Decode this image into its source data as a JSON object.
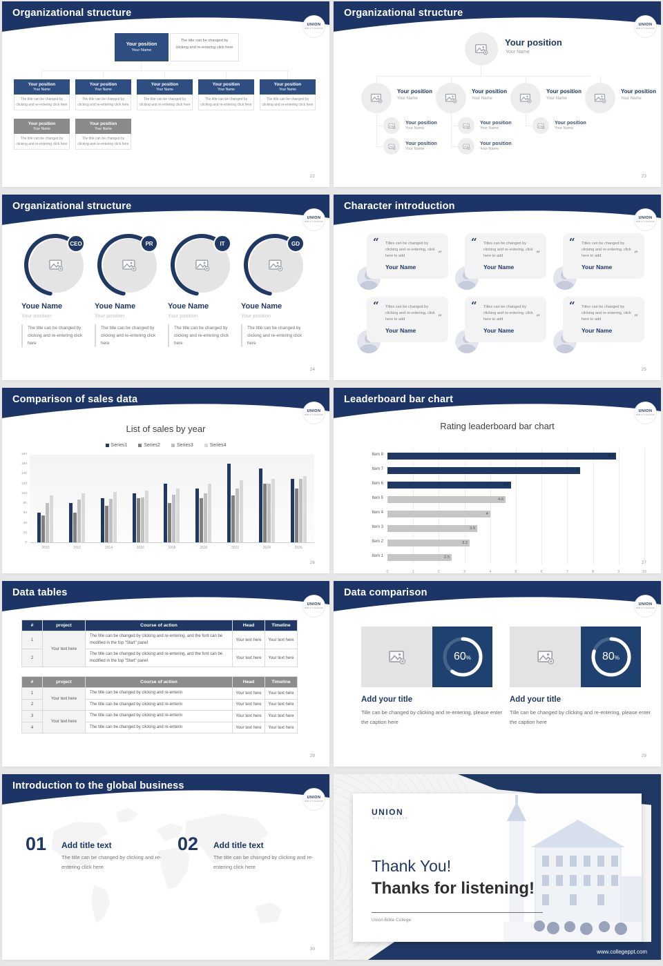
{
  "colors": {
    "navy_header": "#1c3566",
    "box_blue": "#2e4d80",
    "box_gray": "#8a8a8a",
    "accent_navy": "#1f3864",
    "panel_blue": "#1e4170",
    "series": [
      "#1f3864",
      "#808080",
      "#bfbfbf",
      "#d9d9d9"
    ],
    "leader_gray": "#c6c6c6"
  },
  "logo": {
    "text": "UNION",
    "sub": "BIBLE COLLEGE"
  },
  "slides": {
    "org1": {
      "title": "Organizational structure",
      "page": "22",
      "position": "Your position",
      "name": "Your Name",
      "note": "The title can be changed by clicking and re-entering click here",
      "blue_boxes": 5,
      "gray_boxes": 2
    },
    "org2": {
      "title": "Organizational structure",
      "page": "23",
      "position": "Your position",
      "name": "Your Name",
      "children": 4,
      "subs": [
        2,
        2,
        1,
        0
      ]
    },
    "org3": {
      "title": "Organizational structure",
      "page": "24",
      "badges": [
        "CEO",
        "PR",
        "IT",
        "GD"
      ],
      "name": "Youe Name",
      "position": "Your position",
      "desc": "The title can be changed by clicking and re-entering click here"
    },
    "chars": {
      "title": "Character introduction",
      "page": "25",
      "cards": 6,
      "quote": "Titles can be changed by clicking and re-entering, click here to add",
      "name": "Your Name"
    },
    "sales": {
      "title": "Comparison of sales data",
      "page": "26"
    },
    "leader": {
      "title": "Leaderboard bar chart",
      "page": "27"
    },
    "tables": {
      "title": "Data tables",
      "page": "28",
      "headers": [
        "#",
        "project",
        "Course of action",
        "Head",
        "Timeline"
      ],
      "project_cell": "Your text here",
      "text_cell": "Your text here",
      "table1": {
        "rows": [
          "1",
          "2"
        ],
        "course": "The title can be changed by clicking and re-entering, and the font can be modified in the top \"Start\" panel"
      },
      "table2": {
        "rows": [
          "1",
          "2",
          "3",
          "4"
        ],
        "course": "The title can be changed by clicking and re-enterin"
      }
    },
    "compare": {
      "title": "Data comparison",
      "page": "29",
      "items": [
        {
          "value": "60",
          "unit": "%",
          "pct": 60
        },
        {
          "value": "80",
          "unit": "%",
          "pct": 80
        }
      ],
      "card_title": "Add your title",
      "caption": "Tille can be changed by clicking and re-entering, please enter the caption here"
    },
    "global": {
      "title": "Introduction to the global business",
      "page": "30",
      "items": [
        {
          "num": "01",
          "title": "Add title text",
          "body": "The title can be changed by clicking and re-entering click here"
        },
        {
          "num": "02",
          "title": "Add title text",
          "body": "The title can be changed by clicking and re-entering click here"
        }
      ]
    },
    "thanks": {
      "hi": "Thank You!",
      "big": "Thanks for listening!",
      "sub": "Union Bible College",
      "url": "www.collegeppt.com"
    }
  },
  "chart_data": [
    {
      "type": "bar",
      "title": "List of sales by year",
      "categories": [
        "2010",
        "2012",
        "2014",
        "2016",
        "2018",
        "2020",
        "2022",
        "2024",
        "2026"
      ],
      "series": [
        {
          "name": "Series1",
          "values": [
            60,
            80,
            90,
            100,
            120,
            110,
            160,
            150,
            130
          ]
        },
        {
          "name": "Series2",
          "values": [
            55,
            60,
            75,
            90,
            80,
            90,
            95,
            120,
            110
          ]
        },
        {
          "name": "Series3",
          "values": [
            80,
            87,
            88,
            92,
            97,
            100,
            110,
            120,
            130
          ]
        },
        {
          "name": "Series4",
          "values": [
            95,
            100,
            103,
            105,
            110,
            120,
            127,
            130,
            135
          ]
        }
      ],
      "xlabel": "",
      "ylabel": "",
      "ylim": [
        0,
        180
      ],
      "yticks": [
        0,
        20,
        40,
        60,
        80,
        100,
        120,
        140,
        160,
        180
      ],
      "legend_position": "top",
      "grid": false
    },
    {
      "type": "bar",
      "orientation": "horizontal",
      "title": "Rating leaderboard bar chart",
      "categories": [
        "Item 8",
        "Item 7",
        "Item 6",
        "Item 5",
        "Item 4",
        "Item 3",
        "Item 2",
        "Item 1"
      ],
      "values": [
        8.9,
        7.5,
        4.8,
        4.6,
        4,
        3.5,
        3.2,
        2.5
      ],
      "highlight_count": 3,
      "xlabel": "",
      "ylabel": "",
      "xlim": [
        0,
        10
      ],
      "xticks": [
        0,
        1,
        2,
        3,
        4,
        5,
        6,
        7,
        8,
        9,
        10
      ],
      "grid": true
    }
  ]
}
